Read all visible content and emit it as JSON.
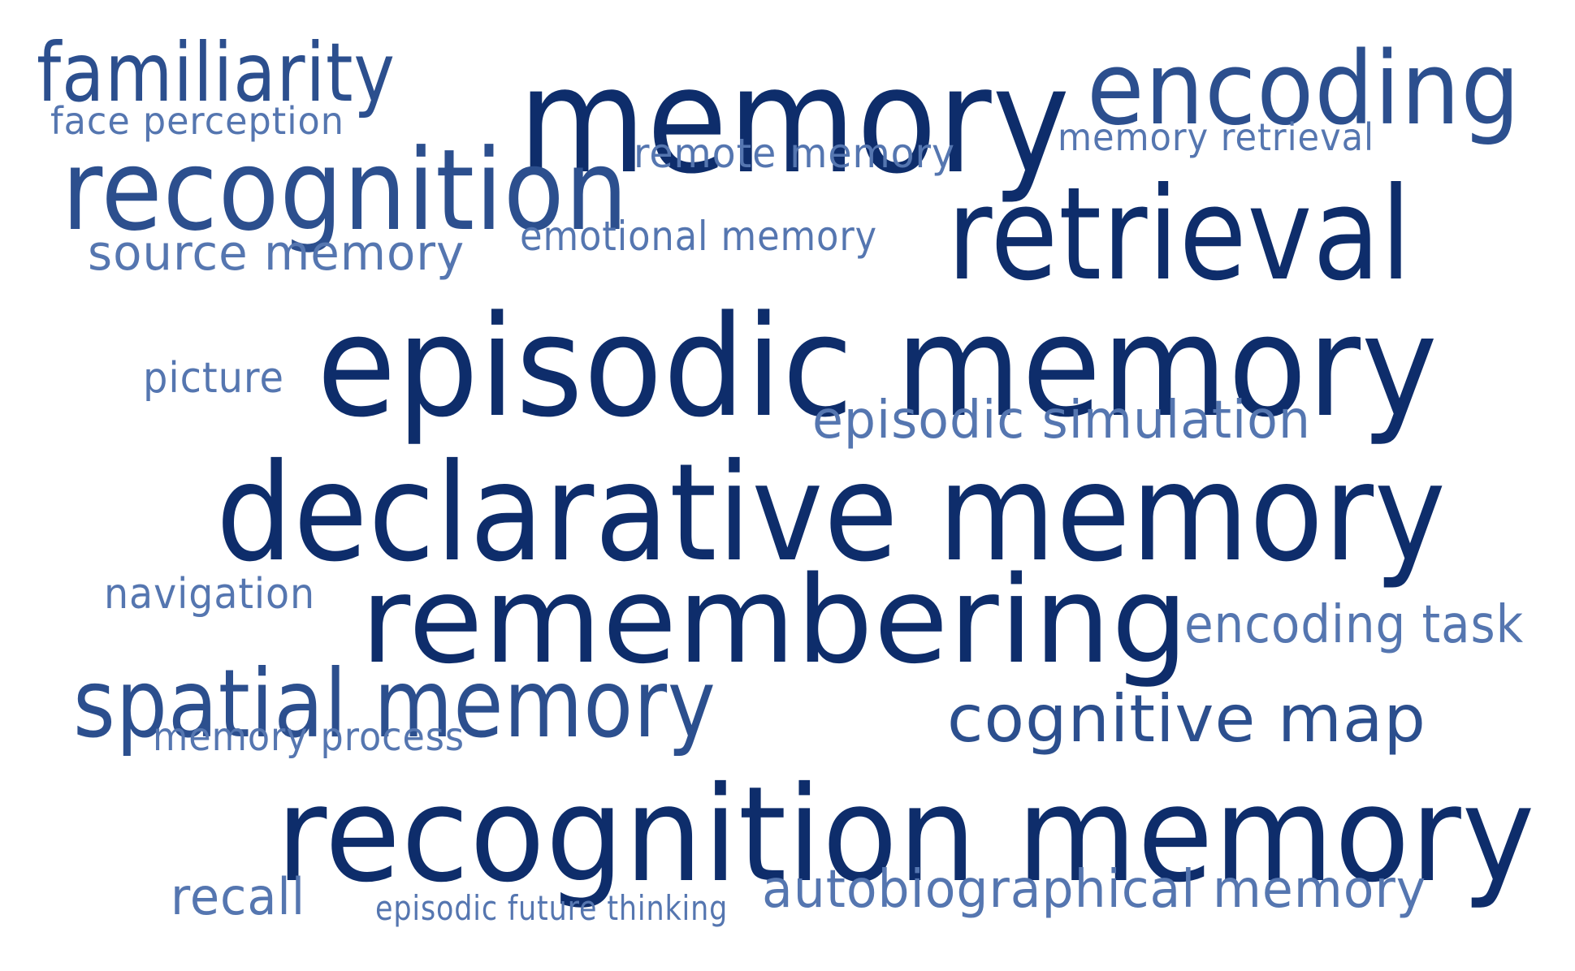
{
  "palette": {
    "dark": "#0e2d6b",
    "mid": "#2c4f8e",
    "light": "#5576b0",
    "background": "#ffffff"
  },
  "words": [
    {
      "text": "familiarity",
      "tone": "mid"
    },
    {
      "text": "face perception",
      "tone": "light"
    },
    {
      "text": "memory",
      "tone": "dark"
    },
    {
      "text": "encoding",
      "tone": "mid"
    },
    {
      "text": "memory retrieval",
      "tone": "light"
    },
    {
      "text": "remote memory",
      "tone": "light"
    },
    {
      "text": "recognition",
      "tone": "mid"
    },
    {
      "text": "retrieval",
      "tone": "dark"
    },
    {
      "text": "emotional memory",
      "tone": "light"
    },
    {
      "text": "source memory",
      "tone": "light"
    },
    {
      "text": "episodic memory",
      "tone": "dark"
    },
    {
      "text": "picture",
      "tone": "light"
    },
    {
      "text": "episodic simulation",
      "tone": "light"
    },
    {
      "text": "declarative memory",
      "tone": "dark"
    },
    {
      "text": "navigation",
      "tone": "light"
    },
    {
      "text": "remembering",
      "tone": "dark"
    },
    {
      "text": "encoding task",
      "tone": "light"
    },
    {
      "text": "spatial memory",
      "tone": "mid"
    },
    {
      "text": "cognitive map",
      "tone": "mid"
    },
    {
      "text": "memory process",
      "tone": "light"
    },
    {
      "text": "recognition memory",
      "tone": "dark"
    },
    {
      "text": "recall",
      "tone": "light"
    },
    {
      "text": "episodic future thinking",
      "tone": "light"
    },
    {
      "text": "autobiographical memory",
      "tone": "light"
    }
  ]
}
